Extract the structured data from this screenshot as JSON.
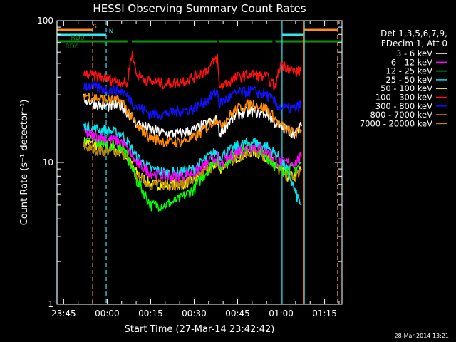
{
  "chart_data": {
    "type": "line",
    "title": "HESSI Observing Summary Count Rates",
    "xlabel": "Start Time (27-Mar-14 23:42:42)",
    "ylabel": "Count Rate (s⁻¹ detector⁻¹)",
    "x_scale": "time",
    "xlim": [
      "23:42:42",
      "01:21:00"
    ],
    "x_ticks": [
      "23:45",
      "00:00",
      "00:15",
      "00:30",
      "00:45",
      "01:00",
      "01:15"
    ],
    "y_scale": "log",
    "ylim": [
      1,
      100
    ],
    "y_ticks": [
      "1",
      "10",
      "100"
    ],
    "grid": false,
    "legend_placement": "right, outside plot",
    "legend_header": [
      "Det 1,3,5,6,7,9,",
      "FDecim 1, Att 0"
    ],
    "annotation_date": "28-Mar-2014 13:21",
    "state_bars": [
      {
        "label": "S",
        "color": "#ff8c1a",
        "intervals": [
          [
            "23:42:42",
            "23:55:00"
          ],
          [
            "01:08:00",
            "01:19:30"
          ]
        ]
      },
      {
        "label": "N",
        "color": "#2ee8f0",
        "intervals": [
          [
            "23:42:42",
            "23:59:40"
          ],
          [
            "01:00:20",
            "01:08:00"
          ]
        ]
      },
      {
        "label": "RD0",
        "color": "#109010",
        "intervals": [
          [
            "23:42:42",
            "00:07:00"
          ],
          [
            "00:08:30",
            "00:38:00"
          ],
          [
            "00:38:40",
            "00:57:00"
          ],
          [
            "00:58:00",
            "01:21:00"
          ]
        ]
      },
      {
        "label": "RD6",
        "color": "#109010",
        "intervals": []
      }
    ],
    "vertical_markers": [
      {
        "time": "23:55:00",
        "color": "#ff8c1a",
        "style": "dashed"
      },
      {
        "time": "23:59:40",
        "color": "#2ee8f0",
        "style": "dashed"
      },
      {
        "time": "01:00:20",
        "color": "#2ee8f0",
        "style": "solid"
      },
      {
        "time": "01:07:40",
        "color": "#ff8c1a",
        "style": "solid"
      },
      {
        "time": "01:08:00",
        "color": "#2ee8f0",
        "style": "solid"
      },
      {
        "time": "01:19:30",
        "color": "#ff8c1a",
        "style": "dashed"
      },
      {
        "time": "23:42:42",
        "color": "#2ee8f0",
        "style": "solid"
      }
    ],
    "series": [
      {
        "name": "3 - 6 keV",
        "color": "#ffffff",
        "x": [
          "23:52:00",
          "23:58:00",
          "00:05:00",
          "00:10:00",
          "00:15:00",
          "00:20:00",
          "00:25:00",
          "00:30:00",
          "00:35:00",
          "00:38:00",
          "00:38:40",
          "00:45:00",
          "00:50:00",
          "00:55:00",
          "00:59:00",
          "01:02:00",
          "01:05:00",
          "01:07:00"
        ],
        "y": [
          28,
          25,
          25,
          19,
          17,
          16,
          16,
          17,
          19,
          20,
          16,
          22,
          23,
          22,
          18,
          17,
          16,
          18
        ]
      },
      {
        "name": "6 - 12 keV",
        "color": "#ff00ff",
        "x": [
          "23:52:00",
          "23:58:00",
          "00:05:00",
          "00:10:00",
          "00:15:00",
          "00:20:00",
          "00:25:00",
          "00:30:00",
          "00:35:00",
          "00:38:00",
          "00:38:40",
          "00:45:00",
          "00:50:00",
          "00:55:00",
          "00:59:00",
          "01:02:00",
          "01:05:00",
          "01:07:00"
        ],
        "y": [
          16,
          15,
          14,
          10,
          8.5,
          8,
          8,
          8.5,
          10,
          11,
          9.5,
          12,
          13,
          12,
          10,
          10,
          10,
          11
        ]
      },
      {
        "name": "12 - 25 keV",
        "color": "#00ff00",
        "x": [
          "23:52:00",
          "23:58:00",
          "00:05:00",
          "00:10:00",
          "00:15:00",
          "00:20:00",
          "00:25:00",
          "00:30:00",
          "00:35:00",
          "00:38:00",
          "00:38:40",
          "00:45:00",
          "00:50:00",
          "00:55:00",
          "00:59:00",
          "01:02:00",
          "01:05:00",
          "01:07:00"
        ],
        "y": [
          15,
          14,
          13,
          7.5,
          5,
          5,
          5.5,
          6.5,
          9,
          11,
          9,
          12,
          13,
          11,
          9,
          9,
          9,
          10
        ]
      },
      {
        "name": "25 - 50 keV",
        "color": "#00e5ee",
        "x": [
          "23:52:00",
          "23:58:00",
          "00:05:00",
          "00:10:00",
          "00:15:00",
          "00:20:00",
          "00:25:00",
          "00:30:00",
          "00:35:00",
          "00:38:00",
          "00:38:40",
          "00:45:00",
          "00:50:00",
          "00:55:00",
          "00:59:00",
          "01:02:00",
          "01:05:00",
          "01:07:00"
        ],
        "y": [
          18,
          17,
          16,
          11,
          9,
          8.5,
          8.5,
          9,
          11,
          12,
          11,
          13,
          14,
          13,
          11,
          9,
          6,
          5
        ]
      },
      {
        "name": "50 - 100 keV",
        "color": "#f0f000",
        "x": [
          "23:52:00",
          "23:58:00",
          "00:05:00",
          "00:10:00",
          "00:15:00",
          "00:20:00",
          "00:25:00",
          "00:30:00",
          "00:35:00",
          "00:38:00",
          "00:38:40",
          "00:45:00",
          "00:50:00",
          "00:55:00",
          "00:59:00",
          "01:02:00",
          "01:05:00",
          "01:07:00"
        ],
        "y": [
          14,
          13,
          12,
          8.5,
          7,
          7,
          7,
          7.5,
          9,
          10,
          9,
          11,
          12,
          11,
          9,
          8,
          8,
          9
        ]
      },
      {
        "name": "100 - 300 keV",
        "color": "#ff1010",
        "x": [
          "23:52:00",
          "23:58:00",
          "00:05:00",
          "00:07:00",
          "00:08:30",
          "00:10:00",
          "00:15:00",
          "00:20:00",
          "00:25:00",
          "00:30:00",
          "00:35:00",
          "00:38:00",
          "00:38:40",
          "00:45:00",
          "00:50:00",
          "00:55:00",
          "00:58:00",
          "01:00:00",
          "01:03:00",
          "01:05:00",
          "01:07:00"
        ],
        "y": [
          42,
          40,
          37,
          36,
          60,
          42,
          37,
          36,
          37,
          40,
          46,
          55,
          34,
          40,
          42,
          40,
          34,
          50,
          46,
          43,
          45
        ]
      },
      {
        "name": "300 - 800 keV",
        "color": "#1010ff",
        "x": [
          "23:52:00",
          "23:58:00",
          "00:05:00",
          "00:10:00",
          "00:15:00",
          "00:20:00",
          "00:25:00",
          "00:30:00",
          "00:35:00",
          "00:38:00",
          "00:38:40",
          "00:45:00",
          "00:50:00",
          "00:55:00",
          "00:59:00",
          "01:02:00",
          "01:05:00",
          "01:07:00"
        ],
        "y": [
          35,
          33,
          32,
          25,
          22,
          22,
          23,
          24,
          28,
          32,
          26,
          31,
          32,
          30,
          25,
          24,
          24,
          26
        ]
      },
      {
        "name": "800 - 7000 keV",
        "color": "#ff8c00",
        "x": [
          "23:52:00",
          "23:58:00",
          "00:05:00",
          "00:10:00",
          "00:15:00",
          "00:20:00",
          "00:25:00",
          "00:30:00",
          "00:35:00",
          "00:38:00",
          "00:38:40",
          "00:45:00",
          "00:50:00",
          "00:55:00",
          "00:59:00",
          "01:02:00",
          "01:05:00",
          "01:07:00"
        ],
        "y": [
          30,
          28,
          27,
          18,
          15,
          14,
          14,
          15,
          18,
          21,
          18,
          24,
          26,
          24,
          19,
          17,
          16,
          17
        ]
      },
      {
        "name": "7000 - 20000 keV",
        "color": "#b8860b",
        "x": [
          "23:52:00",
          "23:58:00",
          "00:05:00",
          "00:10:00",
          "00:15:00",
          "00:20:00",
          "00:25:00",
          "00:30:00",
          "00:35:00",
          "00:38:00",
          "00:38:40",
          "00:45:00",
          "00:50:00",
          "00:55:00",
          "00:59:00",
          "01:02:00",
          "01:05:00",
          "01:07:00"
        ],
        "y": [
          13,
          12,
          12,
          8,
          7,
          7,
          7,
          7.5,
          9,
          10,
          9,
          11,
          12,
          11,
          9,
          8,
          8,
          9
        ]
      }
    ]
  }
}
